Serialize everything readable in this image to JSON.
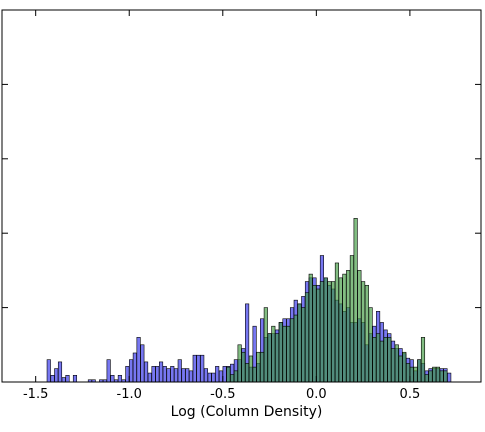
{
  "chart_data": {
    "type": "bar",
    "xlabel": "Log (Column Density)",
    "ylabel": "",
    "xlim": [
      -1.68,
      0.88
    ],
    "ylim": [
      0,
      1
    ],
    "xticks": [
      "-1.5",
      "-1.0",
      "-0.5",
      "0.0",
      "0.5"
    ],
    "yticks_labeled": false,
    "bin_width": 0.0186,
    "series": [
      {
        "color": "#5555ee",
        "bins": [
          [
            -1.43,
            0.06
          ],
          [
            -1.41,
            0.018
          ],
          [
            -1.39,
            0.036
          ],
          [
            -1.37,
            0.054
          ],
          [
            -1.35,
            0.012
          ],
          [
            -1.33,
            0.018
          ],
          [
            -1.29,
            0.018
          ],
          [
            -1.21,
            0.006
          ],
          [
            -1.19,
            0.006
          ],
          [
            -1.15,
            0.006
          ],
          [
            -1.13,
            0.006
          ],
          [
            -1.11,
            0.06
          ],
          [
            -1.09,
            0.018
          ],
          [
            -1.07,
            0.006
          ],
          [
            -1.05,
            0.018
          ],
          [
            -1.03,
            0.006
          ],
          [
            -1.01,
            0.042
          ],
          [
            -0.99,
            0.06
          ],
          [
            -0.97,
            0.078
          ],
          [
            -0.95,
            0.12
          ],
          [
            -0.93,
            0.1
          ],
          [
            -0.91,
            0.054
          ],
          [
            -0.89,
            0.024
          ],
          [
            -0.87,
            0.042
          ],
          [
            -0.85,
            0.042
          ],
          [
            -0.83,
            0.054
          ],
          [
            -0.81,
            0.042
          ],
          [
            -0.79,
            0.036
          ],
          [
            -0.77,
            0.042
          ],
          [
            -0.75,
            0.036
          ],
          [
            -0.73,
            0.06
          ],
          [
            -0.71,
            0.036
          ],
          [
            -0.69,
            0.036
          ],
          [
            -0.67,
            0.03
          ],
          [
            -0.65,
            0.072
          ],
          [
            -0.63,
            0.072
          ],
          [
            -0.61,
            0.072
          ],
          [
            -0.59,
            0.036
          ],
          [
            -0.57,
            0.024
          ],
          [
            -0.55,
            0.024
          ],
          [
            -0.53,
            0.042
          ],
          [
            -0.51,
            0.03
          ],
          [
            -0.49,
            0.042
          ],
          [
            -0.47,
            0.042
          ],
          [
            -0.45,
            0.048
          ],
          [
            -0.43,
            0.06
          ],
          [
            -0.41,
            0.06
          ],
          [
            -0.39,
            0.09
          ],
          [
            -0.37,
            0.21
          ],
          [
            -0.35,
            0.04
          ],
          [
            -0.33,
            0.15
          ],
          [
            -0.31,
            0.05
          ],
          [
            -0.29,
            0.17
          ],
          [
            -0.27,
            0.12
          ],
          [
            -0.25,
            0.13
          ],
          [
            -0.23,
            0.13
          ],
          [
            -0.21,
            0.14
          ],
          [
            -0.19,
            0.16
          ],
          [
            -0.17,
            0.17
          ],
          [
            -0.15,
            0.17
          ],
          [
            -0.13,
            0.2
          ],
          [
            -0.11,
            0.22
          ],
          [
            -0.09,
            0.21
          ],
          [
            -0.07,
            0.23
          ],
          [
            -0.05,
            0.27
          ],
          [
            -0.03,
            0.28
          ],
          [
            -0.01,
            0.28
          ],
          [
            0.01,
            0.26
          ],
          [
            0.03,
            0.34
          ],
          [
            0.05,
            0.28
          ],
          [
            0.07,
            0.26
          ],
          [
            0.09,
            0.25
          ],
          [
            0.11,
            0.22
          ],
          [
            0.13,
            0.21
          ],
          [
            0.15,
            0.19
          ],
          [
            0.17,
            0.2
          ],
          [
            0.19,
            0.16
          ],
          [
            0.21,
            0.16
          ],
          [
            0.23,
            0.17
          ],
          [
            0.25,
            0.16
          ],
          [
            0.27,
            0.1
          ],
          [
            0.29,
            0.13
          ],
          [
            0.31,
            0.15
          ],
          [
            0.33,
            0.19
          ],
          [
            0.35,
            0.16
          ],
          [
            0.37,
            0.14
          ],
          [
            0.39,
            0.13
          ],
          [
            0.41,
            0.11
          ],
          [
            0.43,
            0.09
          ],
          [
            0.45,
            0.09
          ],
          [
            0.47,
            0.076
          ],
          [
            0.49,
            0.064
          ],
          [
            0.51,
            0.06
          ],
          [
            0.53,
            0.03
          ],
          [
            0.55,
            0.06
          ],
          [
            0.57,
            0.05
          ],
          [
            0.59,
            0.03
          ],
          [
            0.61,
            0.036
          ],
          [
            0.63,
            0.036
          ],
          [
            0.65,
            0.036
          ],
          [
            0.67,
            0.036
          ],
          [
            0.69,
            0.036
          ],
          [
            0.71,
            0.024
          ]
        ]
      },
      {
        "color": "#3f9a3f",
        "bins": [
          [
            -0.47,
            0.04
          ],
          [
            -0.45,
            0.02
          ],
          [
            -0.43,
            0.03
          ],
          [
            -0.41,
            0.1
          ],
          [
            -0.39,
            0.08
          ],
          [
            -0.37,
            0.05
          ],
          [
            -0.35,
            0.07
          ],
          [
            -0.33,
            0.04
          ],
          [
            -0.31,
            0.08
          ],
          [
            -0.29,
            0.08
          ],
          [
            -0.27,
            0.2
          ],
          [
            -0.25,
            0.13
          ],
          [
            -0.23,
            0.15
          ],
          [
            -0.21,
            0.13
          ],
          [
            -0.19,
            0.16
          ],
          [
            -0.17,
            0.15
          ],
          [
            -0.15,
            0.15
          ],
          [
            -0.13,
            0.17
          ],
          [
            -0.11,
            0.18
          ],
          [
            -0.09,
            0.21
          ],
          [
            -0.07,
            0.2
          ],
          [
            -0.05,
            0.24
          ],
          [
            -0.03,
            0.29
          ],
          [
            -0.01,
            0.26
          ],
          [
            0.01,
            0.25
          ],
          [
            0.03,
            0.27
          ],
          [
            0.05,
            0.28
          ],
          [
            0.07,
            0.27
          ],
          [
            0.09,
            0.27
          ],
          [
            0.11,
            0.32
          ],
          [
            0.13,
            0.28
          ],
          [
            0.15,
            0.29
          ],
          [
            0.17,
            0.3
          ],
          [
            0.19,
            0.34
          ],
          [
            0.21,
            0.44
          ],
          [
            0.23,
            0.3
          ],
          [
            0.25,
            0.27
          ],
          [
            0.27,
            0.26
          ],
          [
            0.29,
            0.2
          ],
          [
            0.31,
            0.12
          ],
          [
            0.33,
            0.13
          ],
          [
            0.35,
            0.11
          ],
          [
            0.37,
            0.12
          ],
          [
            0.39,
            0.12
          ],
          [
            0.41,
            0.09
          ],
          [
            0.43,
            0.1
          ],
          [
            0.45,
            0.07
          ],
          [
            0.47,
            0.08
          ],
          [
            0.49,
            0.05
          ],
          [
            0.51,
            0.04
          ],
          [
            0.53,
            0.04
          ],
          [
            0.55,
            0.06
          ],
          [
            0.57,
            0.12
          ],
          [
            0.59,
            0.02
          ],
          [
            0.61,
            0.03
          ],
          [
            0.63,
            0.04
          ],
          [
            0.65,
            0.04
          ],
          [
            0.67,
            0.03
          ],
          [
            0.69,
            0.03
          ]
        ]
      }
    ],
    "overlap_color": "#2a6a6a",
    "grid": false,
    "legend": "none"
  }
}
